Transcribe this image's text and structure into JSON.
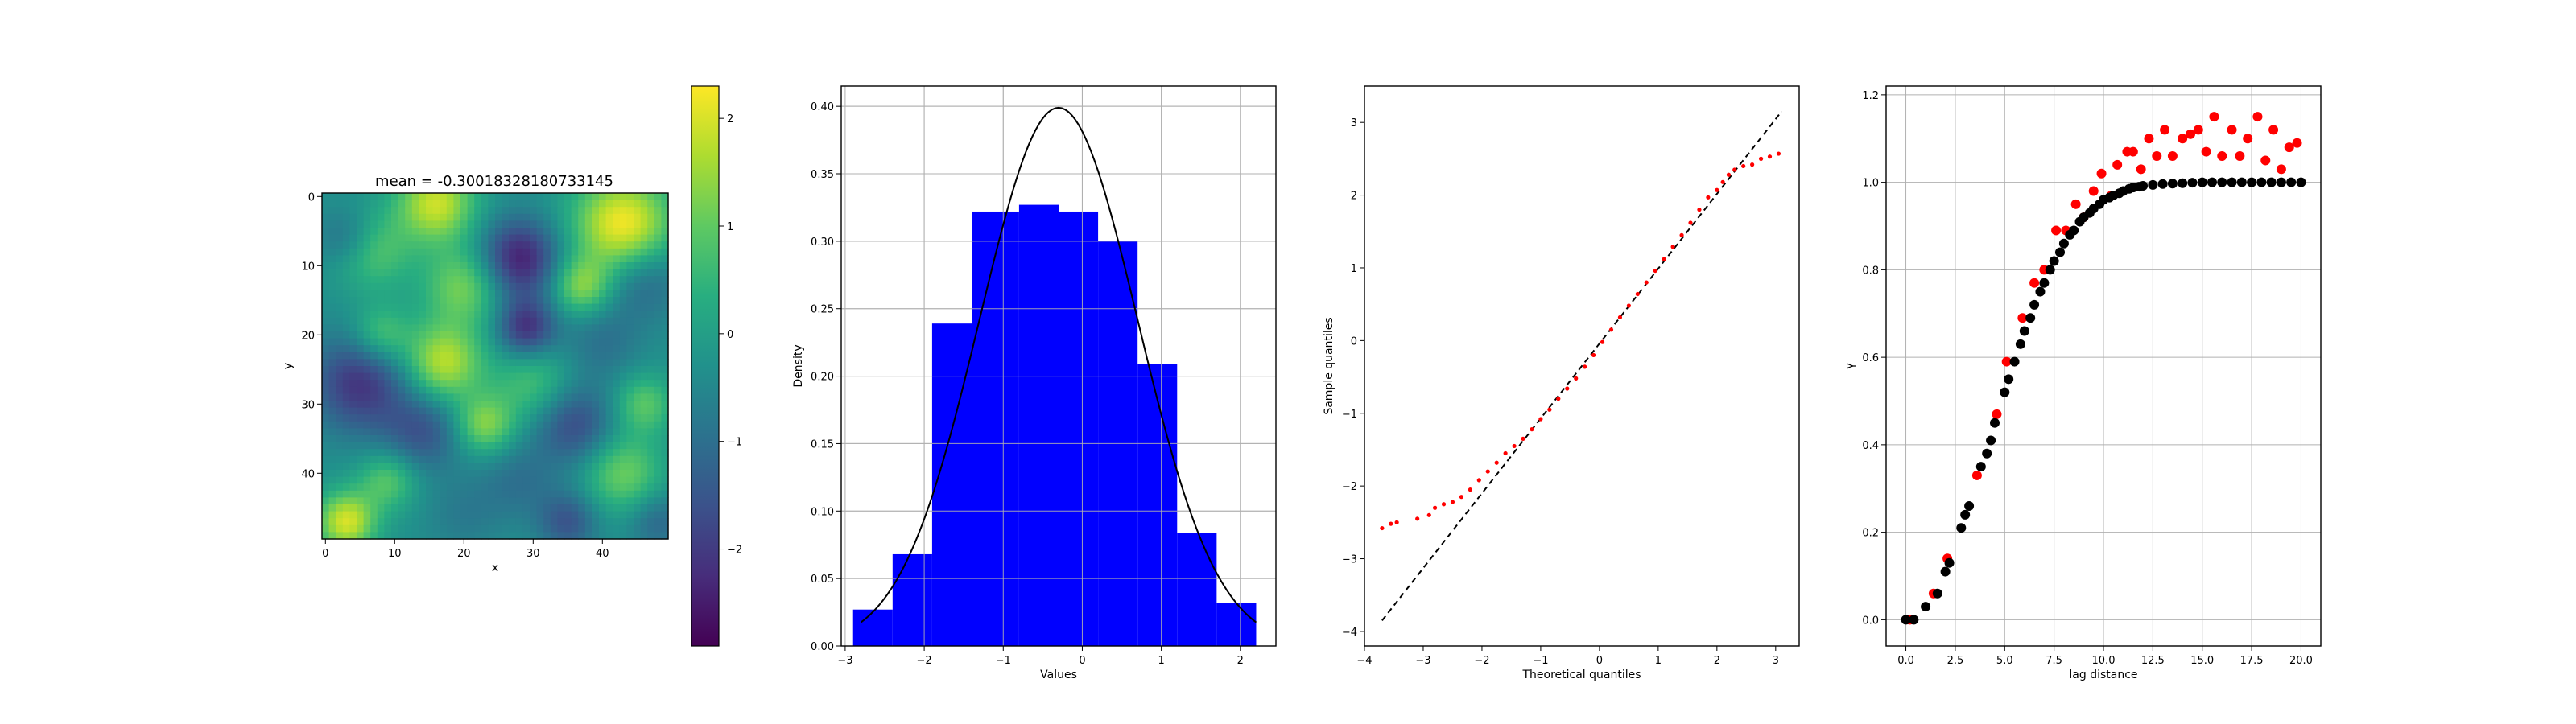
{
  "chart_data": [
    {
      "type": "heatmap",
      "title": "mean = -0.30018328180733145",
      "xlabel": "x",
      "ylabel": "y",
      "xlim": [
        -0.5,
        49.5
      ],
      "ylim": [
        49.5,
        -0.5
      ],
      "xticks": [
        "0",
        "10",
        "20",
        "30",
        "40"
      ],
      "yticks": [
        "0",
        "10",
        "20",
        "30",
        "40"
      ],
      "colormap": "viridis",
      "grid_size": [
        50,
        50
      ],
      "blobs": [
        {
          "x": 16,
          "y": 1,
          "r": 4,
          "v": 2.0
        },
        {
          "x": 43,
          "y": 4,
          "r": 5,
          "v": 2.4
        },
        {
          "x": 28,
          "y": 9,
          "r": 4,
          "v": -2.6
        },
        {
          "x": 7,
          "y": 8,
          "r": 4,
          "v": 0.9
        },
        {
          "x": 3,
          "y": 6,
          "r": 3,
          "v": -1.2
        },
        {
          "x": 20,
          "y": 13,
          "r": 4,
          "v": 1.3
        },
        {
          "x": 37,
          "y": 13,
          "r": 3,
          "v": 1.4
        },
        {
          "x": 46,
          "y": 12,
          "r": 4,
          "v": -1.3
        },
        {
          "x": 29,
          "y": 19,
          "r": 3,
          "v": -2.3
        },
        {
          "x": 17,
          "y": 24,
          "r": 4,
          "v": 1.9
        },
        {
          "x": 8,
          "y": 20,
          "r": 3,
          "v": 1.0
        },
        {
          "x": 5,
          "y": 27,
          "r": 5,
          "v": -2.2
        },
        {
          "x": 40,
          "y": 21,
          "r": 4,
          "v": -1.0
        },
        {
          "x": 30,
          "y": 27,
          "r": 4,
          "v": 0.8
        },
        {
          "x": 23,
          "y": 33,
          "r": 3,
          "v": 1.4
        },
        {
          "x": 14,
          "y": 34,
          "r": 4,
          "v": -1.6
        },
        {
          "x": 36,
          "y": 33,
          "r": 4,
          "v": -1.8
        },
        {
          "x": 46,
          "y": 30,
          "r": 3,
          "v": 1.0
        },
        {
          "x": 9,
          "y": 41,
          "r": 3,
          "v": 1.0
        },
        {
          "x": 28,
          "y": 41,
          "r": 4,
          "v": -1.0
        },
        {
          "x": 43,
          "y": 40,
          "r": 4,
          "v": 1.2
        },
        {
          "x": 3,
          "y": 47,
          "r": 3,
          "v": 2.1
        },
        {
          "x": 20,
          "y": 46,
          "r": 4,
          "v": -0.8
        },
        {
          "x": 35,
          "y": 47,
          "r": 3,
          "v": -1.6
        },
        {
          "x": 48,
          "y": 47,
          "r": 3,
          "v": -1.2
        }
      ],
      "colorbar": {
        "range": [
          -2.9,
          2.3
        ],
        "ticks": [
          {
            "v": -2,
            "label": "−2"
          },
          {
            "v": -1,
            "label": "−1"
          },
          {
            "v": 0,
            "label": "0"
          },
          {
            "v": 1,
            "label": "1"
          },
          {
            "v": 2,
            "label": "2"
          }
        ]
      }
    },
    {
      "type": "bar",
      "subtype": "histogram_with_density",
      "xlabel": "Values",
      "ylabel": "Density",
      "xlim": [
        -3.05,
        2.45
      ],
      "ylim": [
        0,
        0.415
      ],
      "xticks": [
        {
          "v": -3,
          "label": "−3"
        },
        {
          "v": -2,
          "label": "−2"
        },
        {
          "v": -1,
          "label": "−1"
        },
        {
          "v": 0,
          "label": "0"
        },
        {
          "v": 1,
          "label": "1"
        },
        {
          "v": 2,
          "label": "2"
        }
      ],
      "yticks": [
        {
          "v": 0,
          "label": "0.00"
        },
        {
          "v": 0.05,
          "label": "0.05"
        },
        {
          "v": 0.1,
          "label": "0.10"
        },
        {
          "v": 0.15,
          "label": "0.15"
        },
        {
          "v": 0.2,
          "label": "0.20"
        },
        {
          "v": 0.25,
          "label": "0.25"
        },
        {
          "v": 0.3,
          "label": "0.30"
        },
        {
          "v": 0.35,
          "label": "0.35"
        },
        {
          "v": 0.4,
          "label": "0.40"
        }
      ],
      "grid": true,
      "bar_color": "#0000ff",
      "bins": [
        {
          "x0": -2.9,
          "x1": -2.4,
          "value": 0.027
        },
        {
          "x0": -2.4,
          "x1": -1.9,
          "value": 0.068
        },
        {
          "x0": -1.9,
          "x1": -1.4,
          "value": 0.239
        },
        {
          "x0": -1.4,
          "x1": -0.8,
          "value": 0.322
        },
        {
          "x0": -0.8,
          "x1": -0.3,
          "value": 0.327
        },
        {
          "x0": -0.3,
          "x1": 0.2,
          "value": 0.322
        },
        {
          "x0": 0.2,
          "x1": 0.7,
          "value": 0.3
        },
        {
          "x0": 0.7,
          "x1": 1.2,
          "value": 0.209
        },
        {
          "x0": 1.2,
          "x1": 1.7,
          "value": 0.084
        },
        {
          "x0": 1.7,
          "x1": 2.2,
          "value": 0.032
        }
      ],
      "density_curve": {
        "type": "normal_pdf",
        "mean": -0.30018328180733145,
        "std": 1.0,
        "x_range": [
          -2.8,
          2.2
        ],
        "color": "#000000"
      }
    },
    {
      "type": "scatter",
      "subtype": "qq_plot",
      "xlabel": "Theoretical quantiles",
      "ylabel": "Sample quantiles",
      "xlim": [
        -4.0,
        3.4
      ],
      "ylim": [
        -4.2,
        3.5
      ],
      "xticks": [
        {
          "v": -4,
          "label": "−4"
        },
        {
          "v": -3,
          "label": "−3"
        },
        {
          "v": -2,
          "label": "−2"
        },
        {
          "v": -1,
          "label": "−1"
        },
        {
          "v": 0,
          "label": "0"
        },
        {
          "v": 1,
          "label": "1"
        },
        {
          "v": 2,
          "label": "2"
        },
        {
          "v": 3,
          "label": "3"
        }
      ],
      "yticks": [
        {
          "v": -4,
          "label": "−4"
        },
        {
          "v": -3,
          "label": "−3"
        },
        {
          "v": -2,
          "label": "−2"
        },
        {
          "v": -1,
          "label": "−1"
        },
        {
          "v": 0,
          "label": "0"
        },
        {
          "v": 1,
          "label": "1"
        },
        {
          "v": 2,
          "label": "2"
        },
        {
          "v": 3,
          "label": "3"
        }
      ],
      "grid": false,
      "reference_line": {
        "x": [
          -3.7,
          3.1
        ],
        "y": [
          -3.85,
          3.15
        ],
        "color": "#000000",
        "style": "dashed"
      },
      "point_color": "#ff0000",
      "points": [
        {
          "x": -3.7,
          "y": -2.58
        },
        {
          "x": -3.55,
          "y": -2.52
        },
        {
          "x": -3.45,
          "y": -2.5
        },
        {
          "x": -3.1,
          "y": -2.45
        },
        {
          "x": -2.9,
          "y": -2.4
        },
        {
          "x": -2.8,
          "y": -2.3
        },
        {
          "x": -2.65,
          "y": -2.25
        },
        {
          "x": -2.5,
          "y": -2.22
        },
        {
          "x": -2.35,
          "y": -2.15
        },
        {
          "x": -2.2,
          "y": -2.05
        },
        {
          "x": -2.05,
          "y": -1.92
        },
        {
          "x": -1.9,
          "y": -1.8
        },
        {
          "x": -1.75,
          "y": -1.68
        },
        {
          "x": -1.6,
          "y": -1.55
        },
        {
          "x": -1.45,
          "y": -1.45
        },
        {
          "x": -1.3,
          "y": -1.35
        },
        {
          "x": -1.15,
          "y": -1.22
        },
        {
          "x": -1.0,
          "y": -1.08
        },
        {
          "x": -0.85,
          "y": -0.95
        },
        {
          "x": -0.7,
          "y": -0.8
        },
        {
          "x": -0.55,
          "y": -0.66
        },
        {
          "x": -0.4,
          "y": -0.52
        },
        {
          "x": -0.25,
          "y": -0.36
        },
        {
          "x": -0.1,
          "y": -0.2
        },
        {
          "x": 0.05,
          "y": -0.02
        },
        {
          "x": 0.2,
          "y": 0.15
        },
        {
          "x": 0.35,
          "y": 0.32
        },
        {
          "x": 0.5,
          "y": 0.48
        },
        {
          "x": 0.65,
          "y": 0.64
        },
        {
          "x": 0.8,
          "y": 0.8
        },
        {
          "x": 0.95,
          "y": 0.96
        },
        {
          "x": 1.1,
          "y": 1.12
        },
        {
          "x": 1.25,
          "y": 1.29
        },
        {
          "x": 1.4,
          "y": 1.45
        },
        {
          "x": 1.55,
          "y": 1.62
        },
        {
          "x": 1.7,
          "y": 1.8
        },
        {
          "x": 1.85,
          "y": 1.97
        },
        {
          "x": 2.0,
          "y": 2.07
        },
        {
          "x": 2.1,
          "y": 2.18
        },
        {
          "x": 2.2,
          "y": 2.28
        },
        {
          "x": 2.3,
          "y": 2.35
        },
        {
          "x": 2.45,
          "y": 2.4
        },
        {
          "x": 2.6,
          "y": 2.42
        },
        {
          "x": 2.75,
          "y": 2.5
        },
        {
          "x": 2.9,
          "y": 2.53
        },
        {
          "x": 3.05,
          "y": 2.57
        }
      ]
    },
    {
      "type": "scatter",
      "subtype": "variogram",
      "xlabel": "lag distance",
      "ylabel": "γ",
      "xlim": [
        -1.0,
        21.0
      ],
      "ylim": [
        -0.06,
        1.22
      ],
      "xticks": [
        {
          "v": 0,
          "label": "0.0"
        },
        {
          "v": 2.5,
          "label": "2.5"
        },
        {
          "v": 5,
          "label": "5.0"
        },
        {
          "v": 7.5,
          "label": "7.5"
        },
        {
          "v": 10,
          "label": "10.0"
        },
        {
          "v": 12.5,
          "label": "12.5"
        },
        {
          "v": 15,
          "label": "15.0"
        },
        {
          "v": 17.5,
          "label": "17.5"
        },
        {
          "v": 20,
          "label": "20.0"
        }
      ],
      "yticks": [
        {
          "v": 0,
          "label": "0.0"
        },
        {
          "v": 0.2,
          "label": "0.2"
        },
        {
          "v": 0.4,
          "label": "0.4"
        },
        {
          "v": 0.6,
          "label": "0.6"
        },
        {
          "v": 0.8,
          "label": "0.8"
        },
        {
          "v": 1.0,
          "label": "1.0"
        },
        {
          "v": 1.2,
          "label": "1.2"
        }
      ],
      "grid": true,
      "series": [
        {
          "color": "#ff0000",
          "points": [
            {
              "x": 0.2,
              "y": 0.0
            },
            {
              "x": 1.4,
              "y": 0.06
            },
            {
              "x": 2.1,
              "y": 0.14
            },
            {
              "x": 3.6,
              "y": 0.33
            },
            {
              "x": 4.6,
              "y": 0.47
            },
            {
              "x": 5.1,
              "y": 0.59
            },
            {
              "x": 5.9,
              "y": 0.69
            },
            {
              "x": 6.5,
              "y": 0.77
            },
            {
              "x": 7.0,
              "y": 0.8
            },
            {
              "x": 7.6,
              "y": 0.89
            },
            {
              "x": 8.1,
              "y": 0.89
            },
            {
              "x": 8.6,
              "y": 0.95
            },
            {
              "x": 9.0,
              "y": 0.92
            },
            {
              "x": 9.5,
              "y": 0.98
            },
            {
              "x": 9.9,
              "y": 1.02
            },
            {
              "x": 10.4,
              "y": 0.97
            },
            {
              "x": 10.7,
              "y": 1.04
            },
            {
              "x": 11.2,
              "y": 1.07
            },
            {
              "x": 11.5,
              "y": 1.07
            },
            {
              "x": 11.9,
              "y": 1.03
            },
            {
              "x": 12.3,
              "y": 1.1
            },
            {
              "x": 12.7,
              "y": 1.06
            },
            {
              "x": 13.1,
              "y": 1.12
            },
            {
              "x": 13.5,
              "y": 1.06
            },
            {
              "x": 14.0,
              "y": 1.1
            },
            {
              "x": 14.4,
              "y": 1.11
            },
            {
              "x": 14.8,
              "y": 1.12
            },
            {
              "x": 15.2,
              "y": 1.07
            },
            {
              "x": 15.6,
              "y": 1.15
            },
            {
              "x": 16.0,
              "y": 1.06
            },
            {
              "x": 16.5,
              "y": 1.12
            },
            {
              "x": 16.9,
              "y": 1.06
            },
            {
              "x": 17.3,
              "y": 1.1
            },
            {
              "x": 17.8,
              "y": 1.15
            },
            {
              "x": 18.2,
              "y": 1.05
            },
            {
              "x": 18.6,
              "y": 1.12
            },
            {
              "x": 19.0,
              "y": 1.03
            },
            {
              "x": 19.4,
              "y": 1.08
            },
            {
              "x": 19.8,
              "y": 1.09
            }
          ]
        },
        {
          "color": "#000000",
          "points": [
            {
              "x": 0.0,
              "y": 0.0
            },
            {
              "x": 0.4,
              "y": 0.0
            },
            {
              "x": 1.0,
              "y": 0.03
            },
            {
              "x": 1.6,
              "y": 0.06
            },
            {
              "x": 2.0,
              "y": 0.11
            },
            {
              "x": 2.2,
              "y": 0.13
            },
            {
              "x": 2.8,
              "y": 0.21
            },
            {
              "x": 3.0,
              "y": 0.24
            },
            {
              "x": 3.2,
              "y": 0.26
            },
            {
              "x": 3.8,
              "y": 0.35
            },
            {
              "x": 4.1,
              "y": 0.38
            },
            {
              "x": 4.3,
              "y": 0.41
            },
            {
              "x": 4.5,
              "y": 0.45
            },
            {
              "x": 5.0,
              "y": 0.52
            },
            {
              "x": 5.2,
              "y": 0.55
            },
            {
              "x": 5.5,
              "y": 0.59
            },
            {
              "x": 5.8,
              "y": 0.63
            },
            {
              "x": 6.0,
              "y": 0.66
            },
            {
              "x": 6.3,
              "y": 0.69
            },
            {
              "x": 6.5,
              "y": 0.72
            },
            {
              "x": 6.8,
              "y": 0.75
            },
            {
              "x": 7.0,
              "y": 0.77
            },
            {
              "x": 7.3,
              "y": 0.8
            },
            {
              "x": 7.5,
              "y": 0.82
            },
            {
              "x": 7.8,
              "y": 0.84
            },
            {
              "x": 8.0,
              "y": 0.86
            },
            {
              "x": 8.3,
              "y": 0.88
            },
            {
              "x": 8.5,
              "y": 0.89
            },
            {
              "x": 8.8,
              "y": 0.91
            },
            {
              "x": 9.0,
              "y": 0.92
            },
            {
              "x": 9.3,
              "y": 0.93
            },
            {
              "x": 9.5,
              "y": 0.94
            },
            {
              "x": 9.8,
              "y": 0.95
            },
            {
              "x": 10.0,
              "y": 0.96
            },
            {
              "x": 10.3,
              "y": 0.965
            },
            {
              "x": 10.5,
              "y": 0.97
            },
            {
              "x": 10.8,
              "y": 0.975
            },
            {
              "x": 11.0,
              "y": 0.98
            },
            {
              "x": 11.3,
              "y": 0.985
            },
            {
              "x": 11.5,
              "y": 0.988
            },
            {
              "x": 11.8,
              "y": 0.99
            },
            {
              "x": 12.0,
              "y": 0.992
            },
            {
              "x": 12.5,
              "y": 0.994
            },
            {
              "x": 13.0,
              "y": 0.996
            },
            {
              "x": 13.5,
              "y": 0.997
            },
            {
              "x": 14.0,
              "y": 0.998
            },
            {
              "x": 14.5,
              "y": 0.999
            },
            {
              "x": 15.0,
              "y": 1.0
            },
            {
              "x": 15.5,
              "y": 1.0
            },
            {
              "x": 16.0,
              "y": 1.0
            },
            {
              "x": 16.5,
              "y": 1.0
            },
            {
              "x": 17.0,
              "y": 1.0
            },
            {
              "x": 17.5,
              "y": 1.0
            },
            {
              "x": 18.0,
              "y": 1.0
            },
            {
              "x": 18.5,
              "y": 1.0
            },
            {
              "x": 19.0,
              "y": 1.0
            },
            {
              "x": 19.5,
              "y": 1.0
            },
            {
              "x": 20.0,
              "y": 1.0
            }
          ]
        }
      ]
    }
  ]
}
